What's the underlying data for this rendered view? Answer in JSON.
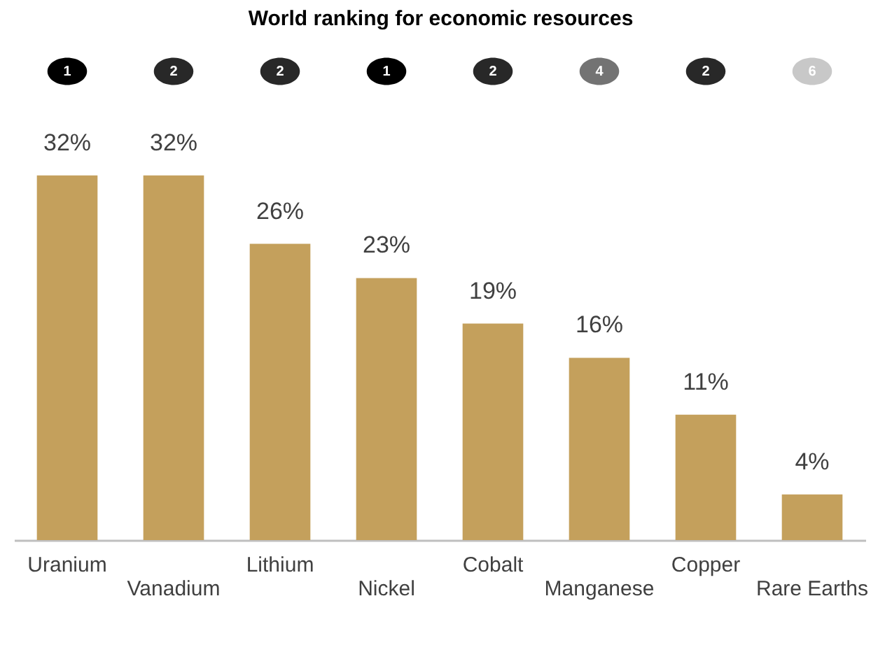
{
  "chart_data": {
    "type": "bar",
    "title": "World ranking for economic resources",
    "categories": [
      "Uranium",
      "Vanadium",
      "Lithium",
      "Nickel",
      "Cobalt",
      "Manganese",
      "Copper",
      "Rare Earths"
    ],
    "values": [
      32,
      32,
      26,
      23,
      19,
      16,
      11,
      4
    ],
    "value_labels": [
      "32%",
      "32%",
      "26%",
      "23%",
      "19%",
      "16%",
      "11%",
      "4%"
    ],
    "color": "#c4a05c",
    "grid": false,
    "annotations": [
      "1",
      "2",
      "2",
      "1",
      "2",
      "4",
      "2",
      "6"
    ]
  }
}
